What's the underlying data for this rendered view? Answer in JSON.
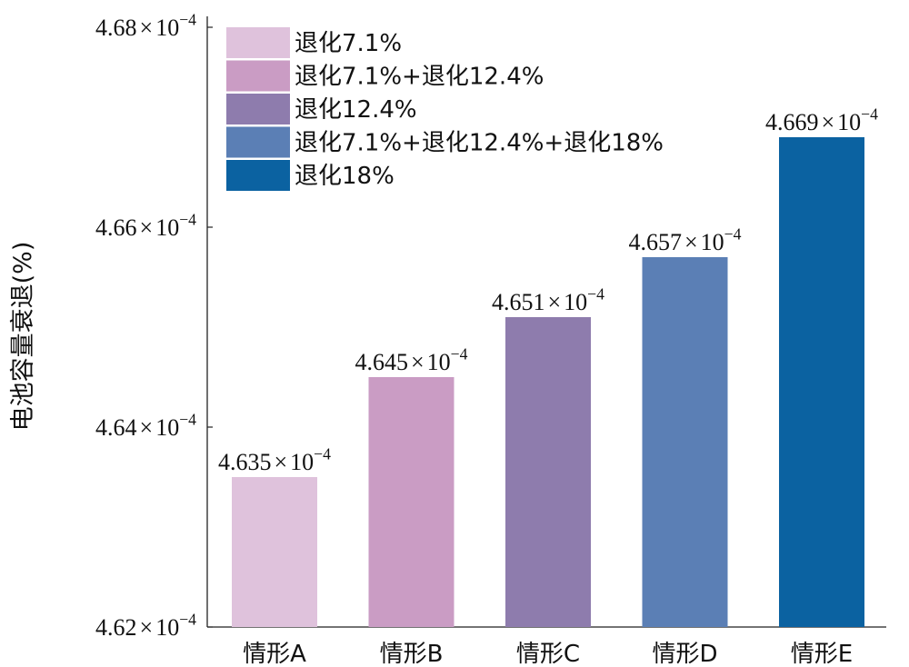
{
  "chart_data": {
    "type": "bar",
    "categories": [
      "情形A",
      "情形B",
      "情形C",
      "情形D",
      "情形E"
    ],
    "values": [
      0.0004635,
      0.0004645,
      0.0004651,
      0.0004657,
      0.0004669
    ],
    "data_labels": [
      {
        "mantissa": "4.635",
        "times": "×",
        "base": "10",
        "exp": "−4"
      },
      {
        "mantissa": "4.645",
        "times": "×",
        "base": "10",
        "exp": "−4"
      },
      {
        "mantissa": "4.651",
        "times": "×",
        "base": "10",
        "exp": "−4"
      },
      {
        "mantissa": "4.657",
        "times": "×",
        "base": "10",
        "exp": "−4"
      },
      {
        "mantissa": "4.669",
        "times": "×",
        "base": "10",
        "exp": "−4"
      }
    ],
    "colors": [
      "#dfc2dc",
      "#ca9cc4",
      "#8e7cad",
      "#5b7fb5",
      "#0b62a1"
    ],
    "legend": [
      "退化7.1%",
      "退化7.1%+退化12.4%",
      "退化12.4%",
      "退化7.1%+退化12.4%+退化18%",
      "退化18%"
    ],
    "legend_position": "top-left",
    "ylabel": "电池容量衰退(%)",
    "xlabel": "",
    "title": "",
    "ylim": [
      0.000462,
      0.000468
    ],
    "yticks": [
      {
        "value": 0.000462,
        "mantissa": "4.62",
        "times": "×",
        "base": "10",
        "exp": "−4"
      },
      {
        "value": 0.000464,
        "mantissa": "4.64",
        "times": "×",
        "base": "10",
        "exp": "−4"
      },
      {
        "value": 0.000466,
        "mantissa": "4.66",
        "times": "×",
        "base": "10",
        "exp": "−4"
      },
      {
        "value": 0.000468,
        "mantissa": "4.68",
        "times": "×",
        "base": "10",
        "exp": "−4"
      }
    ],
    "grid": false
  }
}
